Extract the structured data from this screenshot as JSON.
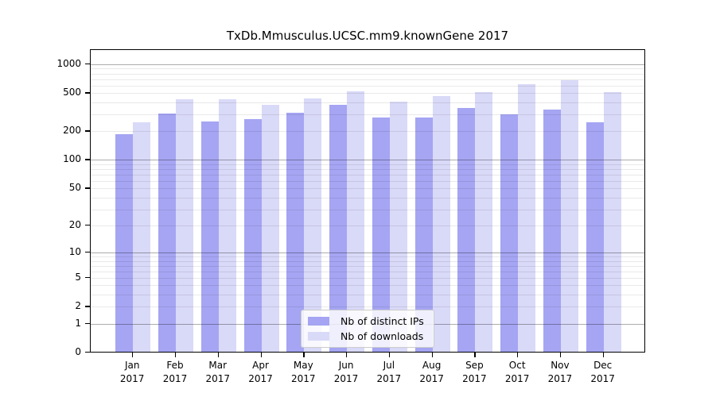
{
  "chart_data": {
    "type": "bar",
    "title": "TxDb.Mmusculus.UCSC.mm9.knownGene 2017",
    "year": "2017",
    "categories": [
      "Jan",
      "Feb",
      "Mar",
      "Apr",
      "May",
      "Jun",
      "Jul",
      "Aug",
      "Sep",
      "Oct",
      "Nov",
      "Dec"
    ],
    "series": [
      {
        "name": "Nb of distinct IPs",
        "color": "#a5a5f3",
        "values": [
          185,
          305,
          254,
          266,
          312,
          377,
          278,
          278,
          350,
          298,
          334,
          248
        ]
      },
      {
        "name": "Nb of downloads",
        "color": "#d9d9f8",
        "values": [
          250,
          428,
          433,
          377,
          437,
          525,
          410,
          465,
          515,
          616,
          682,
          512
        ]
      }
    ],
    "xlabel": "",
    "ylabel": "",
    "y_scale": "log10(1+x)",
    "y_ticks": [
      0,
      1,
      2,
      5,
      10,
      20,
      50,
      100,
      200,
      500,
      1000
    ],
    "ylim": [
      0,
      1000
    ],
    "grid": "horizontal gridlines at 1-9, 10-90, 100-900, 1000 (majors darker at powers of 10)",
    "legend_position": "bottom-center"
  }
}
